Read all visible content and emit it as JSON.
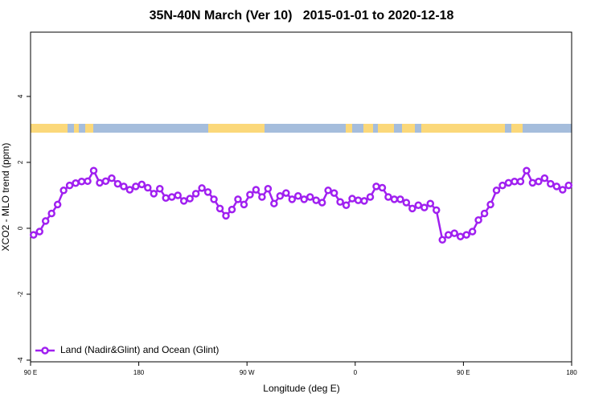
{
  "chart_data": {
    "type": "line",
    "title": "35N-40N March (Ver 10)   2015-01-01 to 2020-12-18",
    "x_label": "Longitude (deg E)",
    "y_label": "XCO2 - MLO trend (ppm)",
    "xlim": [
      90,
      540
    ],
    "ylim": [
      -4.05,
      5.95
    ],
    "xticks": [
      {
        "value": 90,
        "label": "90 E"
      },
      180,
      {
        "value": 270,
        "label": "90 W"
      },
      {
        "value": 360,
        "label": "0"
      },
      {
        "value": 450,
        "label": "90 E"
      },
      {
        "value": 540,
        "label": "180"
      }
    ],
    "yticks": [
      -4,
      -2,
      0,
      2,
      4
    ],
    "legend": "bottom-left",
    "x": [
      92.5,
      97.5,
      102.5,
      107.5,
      112.5,
      117.5,
      122.5,
      127.5,
      132.5,
      137.5,
      142.5,
      147.5,
      152.5,
      157.5,
      162.5,
      167.5,
      172.5,
      177.5,
      182.5,
      187.5,
      192.5,
      197.5,
      202.5,
      207.5,
      212.5,
      217.5,
      222.5,
      227.5,
      232.5,
      237.5,
      242.5,
      247.5,
      252.5,
      257.5,
      262.5,
      267.5,
      272.5,
      277.5,
      282.5,
      287.5,
      292.5,
      297.5,
      302.5,
      307.5,
      312.5,
      317.5,
      322.5,
      327.5,
      332.5,
      337.5,
      342.5,
      347.5,
      352.5,
      357.5,
      362.5,
      367.5,
      372.5,
      377.5,
      382.5,
      387.5,
      392.5,
      397.5,
      402.5,
      407.5,
      412.5,
      417.5,
      422.5,
      427.5,
      432.5,
      437.5,
      442.5,
      447.5,
      452.5,
      457.5,
      462.5,
      467.5,
      472.5,
      477.5,
      482.5,
      487.5,
      492.5,
      497.5,
      502.5,
      507.5,
      512.5,
      517.5,
      522.5,
      527.5,
      532.5,
      537.5
    ],
    "series": [
      {
        "name": "Land (Nadir&Glint) and Ocean (Glint)",
        "color": "#a020f0",
        "values": [
          -0.2,
          -0.1,
          0.22,
          0.45,
          0.72,
          1.15,
          1.3,
          1.37,
          1.42,
          1.43,
          1.75,
          1.38,
          1.43,
          1.52,
          1.35,
          1.27,
          1.17,
          1.27,
          1.33,
          1.23,
          1.05,
          1.2,
          0.92,
          0.95,
          1.0,
          0.83,
          0.9,
          1.05,
          1.22,
          1.1,
          0.88,
          0.6,
          0.38,
          0.57,
          0.88,
          0.72,
          1.02,
          1.17,
          0.95,
          1.2,
          0.75,
          0.98,
          1.07,
          0.88,
          0.98,
          0.88,
          0.95,
          0.85,
          0.78,
          1.15,
          1.07,
          0.8,
          0.7,
          0.9,
          0.85,
          0.83,
          0.95,
          1.27,
          1.23,
          0.95,
          0.88,
          0.88,
          0.78,
          0.6,
          0.7,
          0.63,
          0.75,
          0.55,
          -0.35,
          -0.2,
          -0.15,
          -0.25,
          -0.2,
          -0.1,
          0.25,
          0.45,
          0.72,
          1.15,
          1.3,
          1.38,
          1.42,
          1.42,
          1.75,
          1.38,
          1.42,
          1.52,
          1.35,
          1.27,
          1.17,
          1.3
        ]
      }
    ]
  }
}
